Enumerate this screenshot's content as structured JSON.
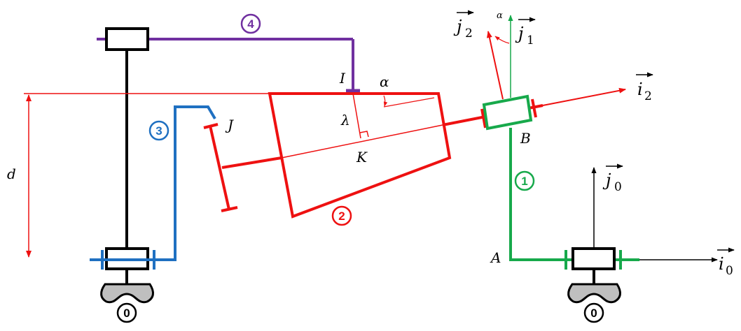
{
  "colors": {
    "black": "#000000",
    "red": "#ee1111",
    "green": "#17a94b",
    "blue": "#1f70c1",
    "purple": "#7030a0",
    "ground_fill": "#bfbfbf"
  },
  "solids": [
    {
      "id": "0",
      "color": "#000000",
      "label": "0"
    },
    {
      "id": "1",
      "color": "#17a94b",
      "label": "1"
    },
    {
      "id": "2",
      "color": "#ee1111",
      "label": "2"
    },
    {
      "id": "3",
      "color": "#1f70c1",
      "label": "3"
    },
    {
      "id": "4",
      "color": "#7030a0",
      "label": "4"
    }
  ],
  "points": {
    "A": "A",
    "B": "B",
    "I": "I",
    "J": "J",
    "K": "K"
  },
  "quantities": {
    "d": "d",
    "lambda": "λ",
    "alpha": "α"
  },
  "vectors": {
    "i0": "i",
    "i0_sub": "0",
    "j0": "j",
    "j0_sub": "0",
    "j1": "j",
    "j1_sub": "1",
    "i2": "i",
    "i2_sub": "2",
    "j2": "j",
    "j2_sub": "2"
  }
}
